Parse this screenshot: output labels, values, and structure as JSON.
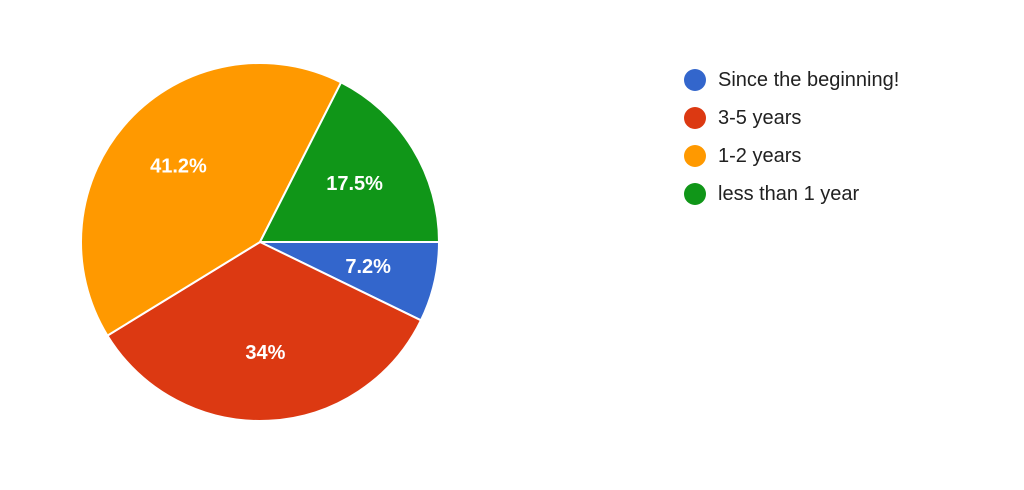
{
  "chart_data": {
    "type": "pie",
    "categories": [
      "Since the beginning!",
      "3-5 years",
      "1-2 years",
      "less than 1 year"
    ],
    "values": [
      7.2,
      34,
      41.2,
      17.5
    ],
    "labels": [
      "7.2%",
      "34%",
      "41.2%",
      "17.5%"
    ],
    "colors": [
      "#3366cc",
      "#dc3912",
      "#ff9900",
      "#109618"
    ],
    "legend": "right"
  }
}
